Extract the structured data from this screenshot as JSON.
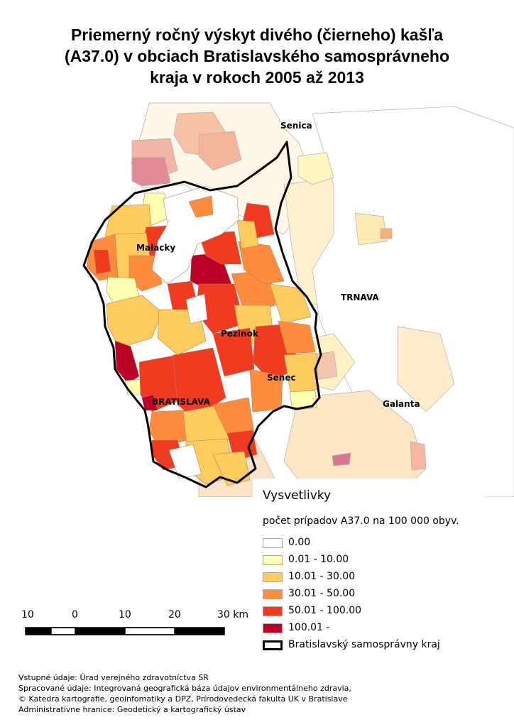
{
  "title": {
    "line1": "Priemerný ročný výskyt divého (čierneho) kašľa",
    "line2": "(A37.0) v obciach Bratislavského samosprávneho",
    "line3": "kraja v rokoch 2005 až 2013"
  },
  "map_labels": {
    "senica": "Senica",
    "malacky": "Malacky",
    "trnava": "TRNAVA",
    "pezinok": "Pezinok",
    "senec": "Senec",
    "bratislava": "BRATISLAVA",
    "galanta": "Galanta"
  },
  "legend": {
    "title": "Vysvetlivky",
    "subtitle": "počet prípadov A37.0 na 100 000 obyv.",
    "classes": [
      {
        "label": "0.00",
        "color": "#ffffff"
      },
      {
        "label": "0.01 - 10.00",
        "color": "#ffffb2"
      },
      {
        "label": "10.01 - 30.00",
        "color": "#fecc5c"
      },
      {
        "label": "30.01 - 50.00",
        "color": "#fd8d3c"
      },
      {
        "label": "50.01 - 100.00",
        "color": "#f03b20"
      },
      {
        "label": "100.01 -",
        "color": "#bd0026"
      }
    ],
    "region_border_label": "Bratislavský samosprávny kraj"
  },
  "scale_bar": {
    "labels": [
      "10",
      "0",
      "10",
      "20",
      "30 km"
    ]
  },
  "credits": {
    "line1": "Vstupné údaje: Úrad verejného zdravotníctva SR",
    "line2": "Spracované údaje: Integrovaná geografická báza údajov environmentálneho zdravia,",
    "line3": "© Katedra kartografie, geoinfomatiky a DPZ, Prírodovedecká fakulta UK v Bratislave",
    "line4": "Administratívne hranice: Geodetický a kartografický ústav"
  }
}
